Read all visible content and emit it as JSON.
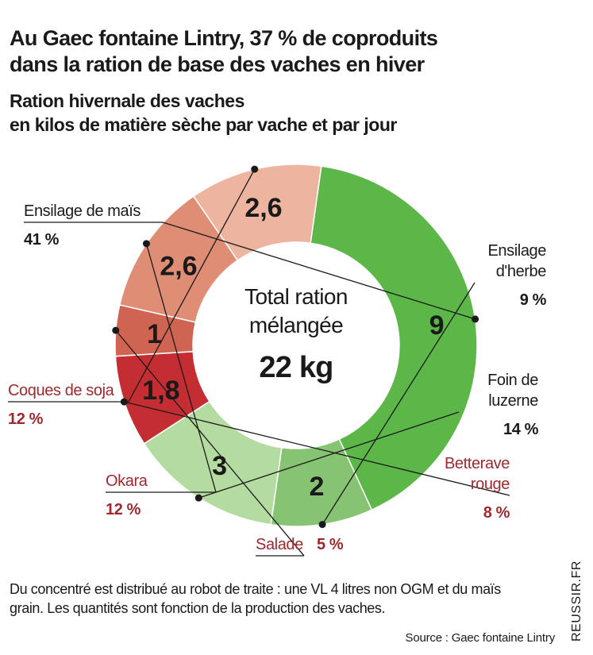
{
  "header": {
    "title_line1": "Au Gaec fontaine Lintry, 37 % de coproduits",
    "title_line2": "dans la ration de base des vaches en hiver",
    "subtitle_line1": "Ration hivernale des vaches",
    "subtitle_line2": "en kilos de matière sèche par vache et par jour"
  },
  "chart_data": {
    "type": "pie",
    "variant": "donut",
    "center_label_lines": [
      "Total ration",
      "mélangée"
    ],
    "center_value": "22 kg",
    "slices": [
      {
        "label_lines": [
          "Ensilage de maïs"
        ],
        "value": 9,
        "value_label": "9",
        "percent": "41 %",
        "color": "#5cb648",
        "label_color": "#1a1a1a"
      },
      {
        "label_lines": [
          "Ensilage",
          "d'herbe"
        ],
        "value": 2,
        "value_label": "2",
        "percent": "9 %",
        "color": "#86c474",
        "label_color": "#1a1a1a"
      },
      {
        "label_lines": [
          "Foin de",
          "luzerne"
        ],
        "value": 3,
        "value_label": "3",
        "percent": "14 %",
        "color": "#b5dca0",
        "label_color": "#1a1a1a"
      },
      {
        "label_lines": [
          "Betterave",
          "rouge"
        ],
        "value": 1.8,
        "value_label": "1,8",
        "percent": "8 %",
        "color": "#c42e33",
        "label_color": "#9c2a2e"
      },
      {
        "label_lines": [
          "Salade"
        ],
        "value": 1,
        "value_label": "1",
        "percent": "5 %",
        "color": "#d06452",
        "label_color": "#9c2a2e"
      },
      {
        "label_lines": [
          "Okara"
        ],
        "value": 2.6,
        "value_label": "2,6",
        "percent": "12 %",
        "color": "#e08d75",
        "label_color": "#9c2a2e"
      },
      {
        "label_lines": [
          "Coques de soja"
        ],
        "value": 2.6,
        "value_label": "2,6",
        "percent": "12 %",
        "color": "#edb59f",
        "label_color": "#9c2a2e"
      }
    ]
  },
  "footer": {
    "note_line1": "Du concentré est distribué au robot de traite : une VL 4 litres non OGM et du maïs",
    "note_line2": "grain. Les quantités sont fonction de la production des vaches.",
    "source": "Source : Gaec fontaine Lintry",
    "watermark": "REUSSIR.FR"
  }
}
